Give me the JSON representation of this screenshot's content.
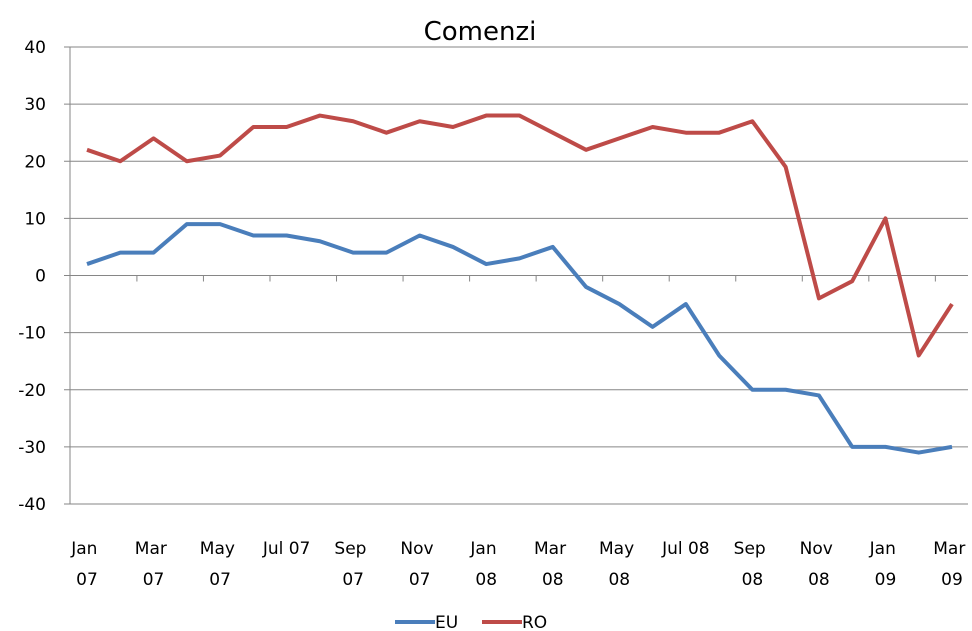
{
  "chart_data": {
    "type": "line",
    "title": "Comenzi",
    "categories": [
      "Jan 07",
      null,
      "Mar 07",
      null,
      "May 07",
      null,
      "Jul 07",
      null,
      "Sep 07",
      null,
      "Nov 07",
      null,
      "Jan 08",
      null,
      "Mar 08",
      null,
      "May 08",
      null,
      "Jul 08",
      null,
      "Sep 08",
      null,
      "Nov 08",
      null,
      "Jan 09",
      null,
      "Mar 09"
    ],
    "series": [
      {
        "name": "EU",
        "color": "#4a7ebb",
        "values": [
          2,
          4,
          4,
          9,
          9,
          7,
          7,
          6,
          4,
          4,
          7,
          5,
          2,
          3,
          5,
          -2,
          -5,
          -9,
          -5,
          -14,
          -20,
          -20,
          -21,
          -30,
          -30,
          -31,
          -30
        ]
      },
      {
        "name": "RO",
        "color": "#be4b48",
        "values": [
          22,
          20,
          24,
          20,
          21,
          26,
          26,
          28,
          27,
          25,
          27,
          26,
          28,
          28,
          25,
          22,
          24,
          26,
          25,
          25,
          27,
          19,
          -4,
          -1,
          10,
          -14,
          -5
        ]
      }
    ],
    "ylim": [
      -40,
      40
    ],
    "yticks": [
      -40,
      -30,
      -20,
      -10,
      0,
      10,
      20,
      30,
      40
    ],
    "grid": true,
    "legend": "bottom"
  }
}
